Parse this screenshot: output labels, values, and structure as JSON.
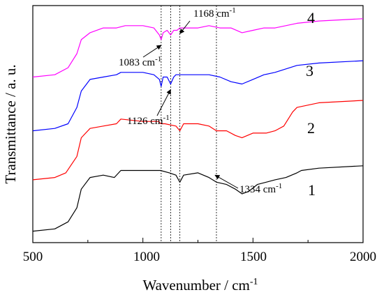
{
  "chart_data": {
    "type": "line",
    "xlabel": "Wavenumber / cm",
    "xlabel_sup": "-1",
    "ylabel": "Transmittance / a. u.",
    "xlim": [
      500,
      2000
    ],
    "x_ticks": [
      "500",
      "1000",
      "1500",
      "2000"
    ],
    "y_ticks_labeled": false,
    "grid": false,
    "series": [
      {
        "name": "1",
        "color": "#000000",
        "points": [
          [
            500,
            0.04
          ],
          [
            600,
            0.05
          ],
          [
            660,
            0.08
          ],
          [
            700,
            0.14
          ],
          [
            720,
            0.22
          ],
          [
            760,
            0.27
          ],
          [
            820,
            0.28
          ],
          [
            870,
            0.27
          ],
          [
            900,
            0.3
          ],
          [
            1000,
            0.3
          ],
          [
            1080,
            0.3
          ],
          [
            1120,
            0.29
          ],
          [
            1150,
            0.28
          ],
          [
            1168,
            0.25
          ],
          [
            1185,
            0.28
          ],
          [
            1250,
            0.29
          ],
          [
            1300,
            0.27
          ],
          [
            1334,
            0.25
          ],
          [
            1380,
            0.24
          ],
          [
            1420,
            0.22
          ],
          [
            1450,
            0.2
          ],
          [
            1480,
            0.21
          ],
          [
            1520,
            0.24
          ],
          [
            1560,
            0.25
          ],
          [
            1600,
            0.26
          ],
          [
            1650,
            0.27
          ],
          [
            1700,
            0.29
          ],
          [
            1720,
            0.3
          ],
          [
            1800,
            0.31
          ],
          [
            2000,
            0.32
          ]
        ]
      },
      {
        "name": "2",
        "color": "#ff0000",
        "points": [
          [
            500,
            0.26
          ],
          [
            600,
            0.27
          ],
          [
            650,
            0.29
          ],
          [
            700,
            0.36
          ],
          [
            720,
            0.44
          ],
          [
            760,
            0.48
          ],
          [
            820,
            0.49
          ],
          [
            880,
            0.5
          ],
          [
            900,
            0.52
          ],
          [
            1000,
            0.51
          ],
          [
            1070,
            0.51
          ],
          [
            1083,
            0.5
          ],
          [
            1100,
            0.5
          ],
          [
            1150,
            0.49
          ],
          [
            1168,
            0.47
          ],
          [
            1185,
            0.5
          ],
          [
            1250,
            0.5
          ],
          [
            1300,
            0.49
          ],
          [
            1334,
            0.47
          ],
          [
            1380,
            0.47
          ],
          [
            1420,
            0.45
          ],
          [
            1450,
            0.44
          ],
          [
            1500,
            0.46
          ],
          [
            1560,
            0.46
          ],
          [
            1600,
            0.47
          ],
          [
            1640,
            0.49
          ],
          [
            1680,
            0.55
          ],
          [
            1700,
            0.57
          ],
          [
            1800,
            0.59
          ],
          [
            2000,
            0.6
          ]
        ]
      },
      {
        "name": "3",
        "color": "#0000ff",
        "points": [
          [
            500,
            0.47
          ],
          [
            600,
            0.48
          ],
          [
            660,
            0.5
          ],
          [
            700,
            0.57
          ],
          [
            720,
            0.64
          ],
          [
            760,
            0.69
          ],
          [
            820,
            0.7
          ],
          [
            880,
            0.71
          ],
          [
            900,
            0.72
          ],
          [
            1000,
            0.72
          ],
          [
            1050,
            0.71
          ],
          [
            1075,
            0.69
          ],
          [
            1083,
            0.66
          ],
          [
            1092,
            0.7
          ],
          [
            1110,
            0.7
          ],
          [
            1126,
            0.67
          ],
          [
            1140,
            0.7
          ],
          [
            1150,
            0.71
          ],
          [
            1168,
            0.71
          ],
          [
            1200,
            0.71
          ],
          [
            1250,
            0.71
          ],
          [
            1300,
            0.71
          ],
          [
            1350,
            0.7
          ],
          [
            1400,
            0.68
          ],
          [
            1450,
            0.67
          ],
          [
            1500,
            0.69
          ],
          [
            1550,
            0.71
          ],
          [
            1600,
            0.72
          ],
          [
            1700,
            0.75
          ],
          [
            1800,
            0.76
          ],
          [
            2000,
            0.77
          ]
        ]
      },
      {
        "name": "4",
        "color": "#ff00ff",
        "points": [
          [
            500,
            0.7
          ],
          [
            600,
            0.71
          ],
          [
            660,
            0.74
          ],
          [
            700,
            0.8
          ],
          [
            720,
            0.86
          ],
          [
            760,
            0.89
          ],
          [
            820,
            0.91
          ],
          [
            880,
            0.91
          ],
          [
            920,
            0.92
          ],
          [
            1000,
            0.92
          ],
          [
            1050,
            0.91
          ],
          [
            1075,
            0.88
          ],
          [
            1083,
            0.86
          ],
          [
            1092,
            0.89
          ],
          [
            1110,
            0.9
          ],
          [
            1126,
            0.88
          ],
          [
            1140,
            0.9
          ],
          [
            1155,
            0.9
          ],
          [
            1168,
            0.91
          ],
          [
            1200,
            0.91
          ],
          [
            1250,
            0.91
          ],
          [
            1300,
            0.92
          ],
          [
            1350,
            0.91
          ],
          [
            1400,
            0.91
          ],
          [
            1450,
            0.89
          ],
          [
            1500,
            0.9
          ],
          [
            1550,
            0.91
          ],
          [
            1600,
            0.91
          ],
          [
            1700,
            0.93
          ],
          [
            1800,
            0.94
          ],
          [
            2000,
            0.95
          ]
        ]
      }
    ],
    "ref_lines": [
      1083,
      1126,
      1168,
      1334
    ],
    "annotations": [
      {
        "text": "1083 cm",
        "sup": "-1",
        "x": 1083,
        "series": "4"
      },
      {
        "text": "1126 cm",
        "sup": "-1",
        "x": 1126,
        "series": "3"
      },
      {
        "text": "1168 cm",
        "sup": "-1",
        "x": 1168,
        "series": "4"
      },
      {
        "text": "1334 cm",
        "sup": "-1",
        "x": 1334,
        "series": "1"
      }
    ]
  }
}
